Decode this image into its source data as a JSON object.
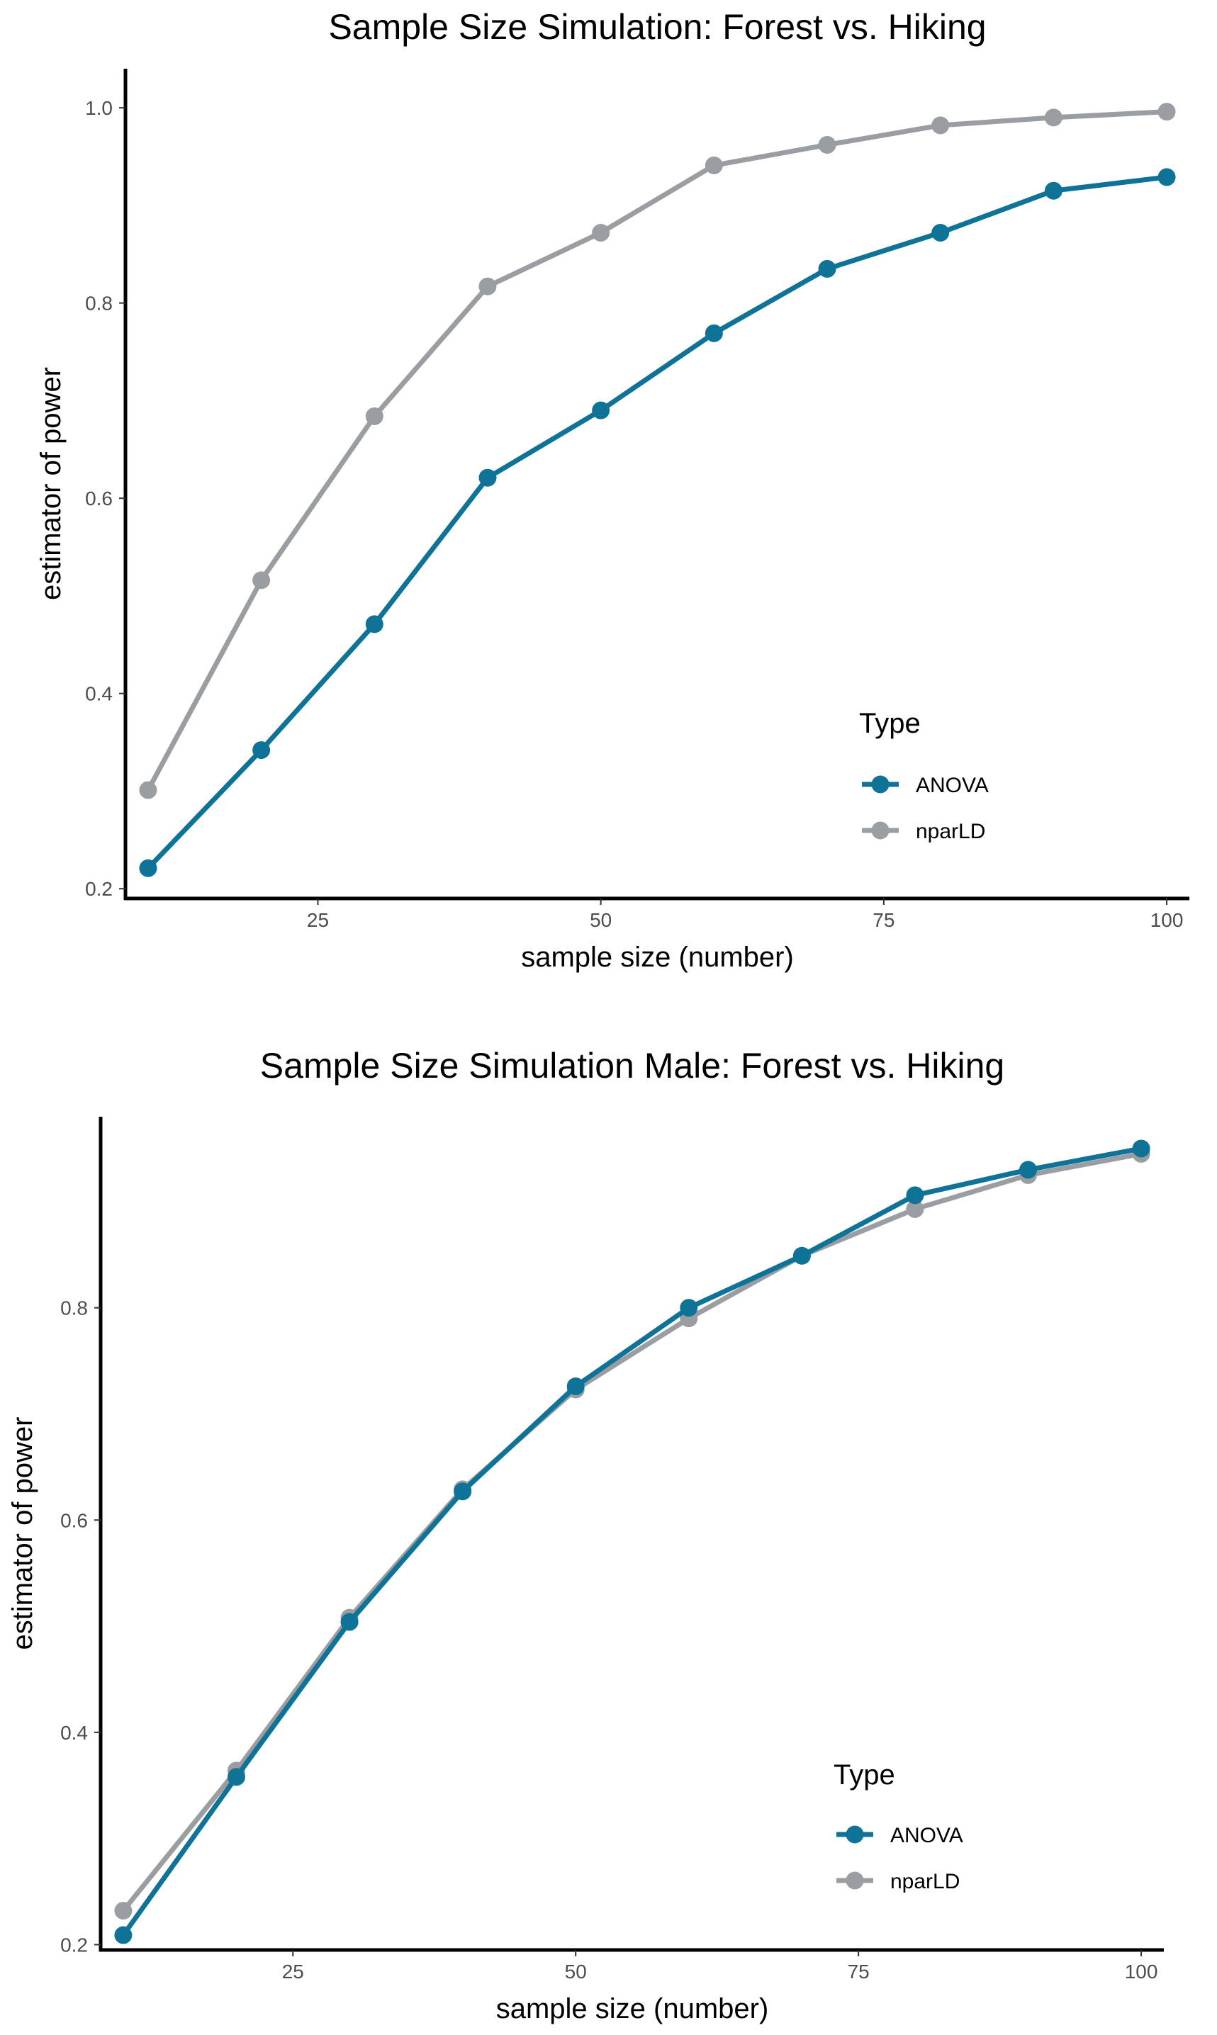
{
  "chart_data": [
    {
      "type": "line",
      "title": "Sample Size Simulation: Forest vs. Hiking",
      "xlabel": "sample size (number)",
      "ylabel": "estimator of power",
      "xlim": [
        8,
        102
      ],
      "ylim": [
        0.19,
        1.04
      ],
      "xticks": [
        25,
        50,
        75,
        100
      ],
      "xtick_labels": [
        "25",
        "50",
        "75",
        "100"
      ],
      "yticks": [
        0.2,
        0.4,
        0.6,
        0.8,
        1.0
      ],
      "ytick_labels": [
        "0.2",
        "0.4",
        "0.6",
        "0.8",
        "1.0"
      ],
      "x": [
        10,
        20,
        30,
        40,
        50,
        60,
        70,
        80,
        90,
        100
      ],
      "legend_title": "Type",
      "legend_position": "bottom-right",
      "series": [
        {
          "name": "ANOVA",
          "color": "#0f7398",
          "values": [
            0.221,
            0.342,
            0.471,
            0.621,
            0.69,
            0.769,
            0.835,
            0.872,
            0.915,
            0.929
          ]
        },
        {
          "name": "nparLD",
          "color": "#9a9da1",
          "values": [
            0.301,
            0.516,
            0.684,
            0.817,
            0.872,
            0.941,
            0.962,
            0.982,
            0.99,
            0.996
          ]
        }
      ]
    },
    {
      "type": "line",
      "title": "Sample Size Simulation Male: Forest vs. Hiking",
      "xlabel": "sample size (number)",
      "ylabel": "estimator of power",
      "xlim": [
        8,
        102
      ],
      "ylim": [
        0.195,
        0.98
      ],
      "xticks": [
        25,
        50,
        75,
        100
      ],
      "xtick_labels": [
        "25",
        "50",
        "75",
        "100"
      ],
      "yticks": [
        0.2,
        0.4,
        0.6,
        0.8
      ],
      "ytick_labels": [
        "0.2",
        "0.4",
        "0.6",
        "0.8"
      ],
      "x": [
        10,
        20,
        30,
        40,
        50,
        60,
        70,
        80,
        90,
        100
      ],
      "legend_title": "Type",
      "legend_position": "bottom-right",
      "series": [
        {
          "name": "ANOVA",
          "color": "#0f7398",
          "values": [
            0.209,
            0.358,
            0.504,
            0.627,
            0.726,
            0.8,
            0.849,
            0.906,
            0.93,
            0.95
          ]
        },
        {
          "name": "nparLD",
          "color": "#9a9da1",
          "values": [
            0.232,
            0.364,
            0.508,
            0.629,
            0.723,
            0.79,
            0.849,
            0.893,
            0.925,
            0.945
          ]
        }
      ]
    }
  ]
}
